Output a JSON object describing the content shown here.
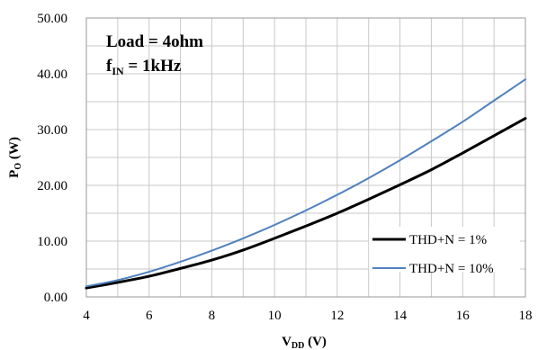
{
  "chart_data": {
    "type": "line",
    "xlabel": {
      "main": "V",
      "sub": "DD",
      "unit": " (V)"
    },
    "ylabel": {
      "main": "P",
      "sub": "O",
      "unit": " (W)"
    },
    "xlim": [
      4,
      18
    ],
    "ylim": [
      0,
      50
    ],
    "xticks": [
      4,
      6,
      8,
      10,
      12,
      14,
      16,
      18
    ],
    "xtick_labels": [
      "4",
      "6",
      "8",
      "10",
      "12",
      "14",
      "16",
      "18"
    ],
    "yticks": [
      0,
      10,
      20,
      30,
      40,
      50
    ],
    "ytick_labels": [
      "0.00",
      "10.00",
      "20.00",
      "30.00",
      "40.00",
      "50.00"
    ],
    "grid": true,
    "legend_position": "bottom-right",
    "annotations": {
      "load": "Load = 4ohm",
      "fin_main": "f",
      "fin_sub": "IN",
      "fin_rest": " = 1kHz"
    },
    "series": [
      {
        "name": "THD+N = 1%",
        "color": "#000000",
        "x": [
          4,
          5,
          6,
          7,
          8,
          9,
          10,
          11,
          12,
          13,
          14,
          15,
          16,
          17,
          18
        ],
        "y": [
          1.6,
          2.6,
          3.7,
          5.1,
          6.6,
          8.4,
          10.5,
          12.7,
          15.0,
          17.5,
          20.1,
          22.8,
          25.8,
          28.9,
          32.0
        ]
      },
      {
        "name": "THD+N = 10%",
        "color": "#4f81bd",
        "x": [
          4,
          5,
          6,
          7,
          8,
          9,
          10,
          11,
          12,
          13,
          14,
          15,
          16,
          17,
          18
        ],
        "y": [
          1.9,
          3.0,
          4.5,
          6.3,
          8.3,
          10.5,
          12.9,
          15.5,
          18.3,
          21.3,
          24.5,
          27.9,
          31.4,
          35.2,
          39.0
        ]
      }
    ]
  }
}
